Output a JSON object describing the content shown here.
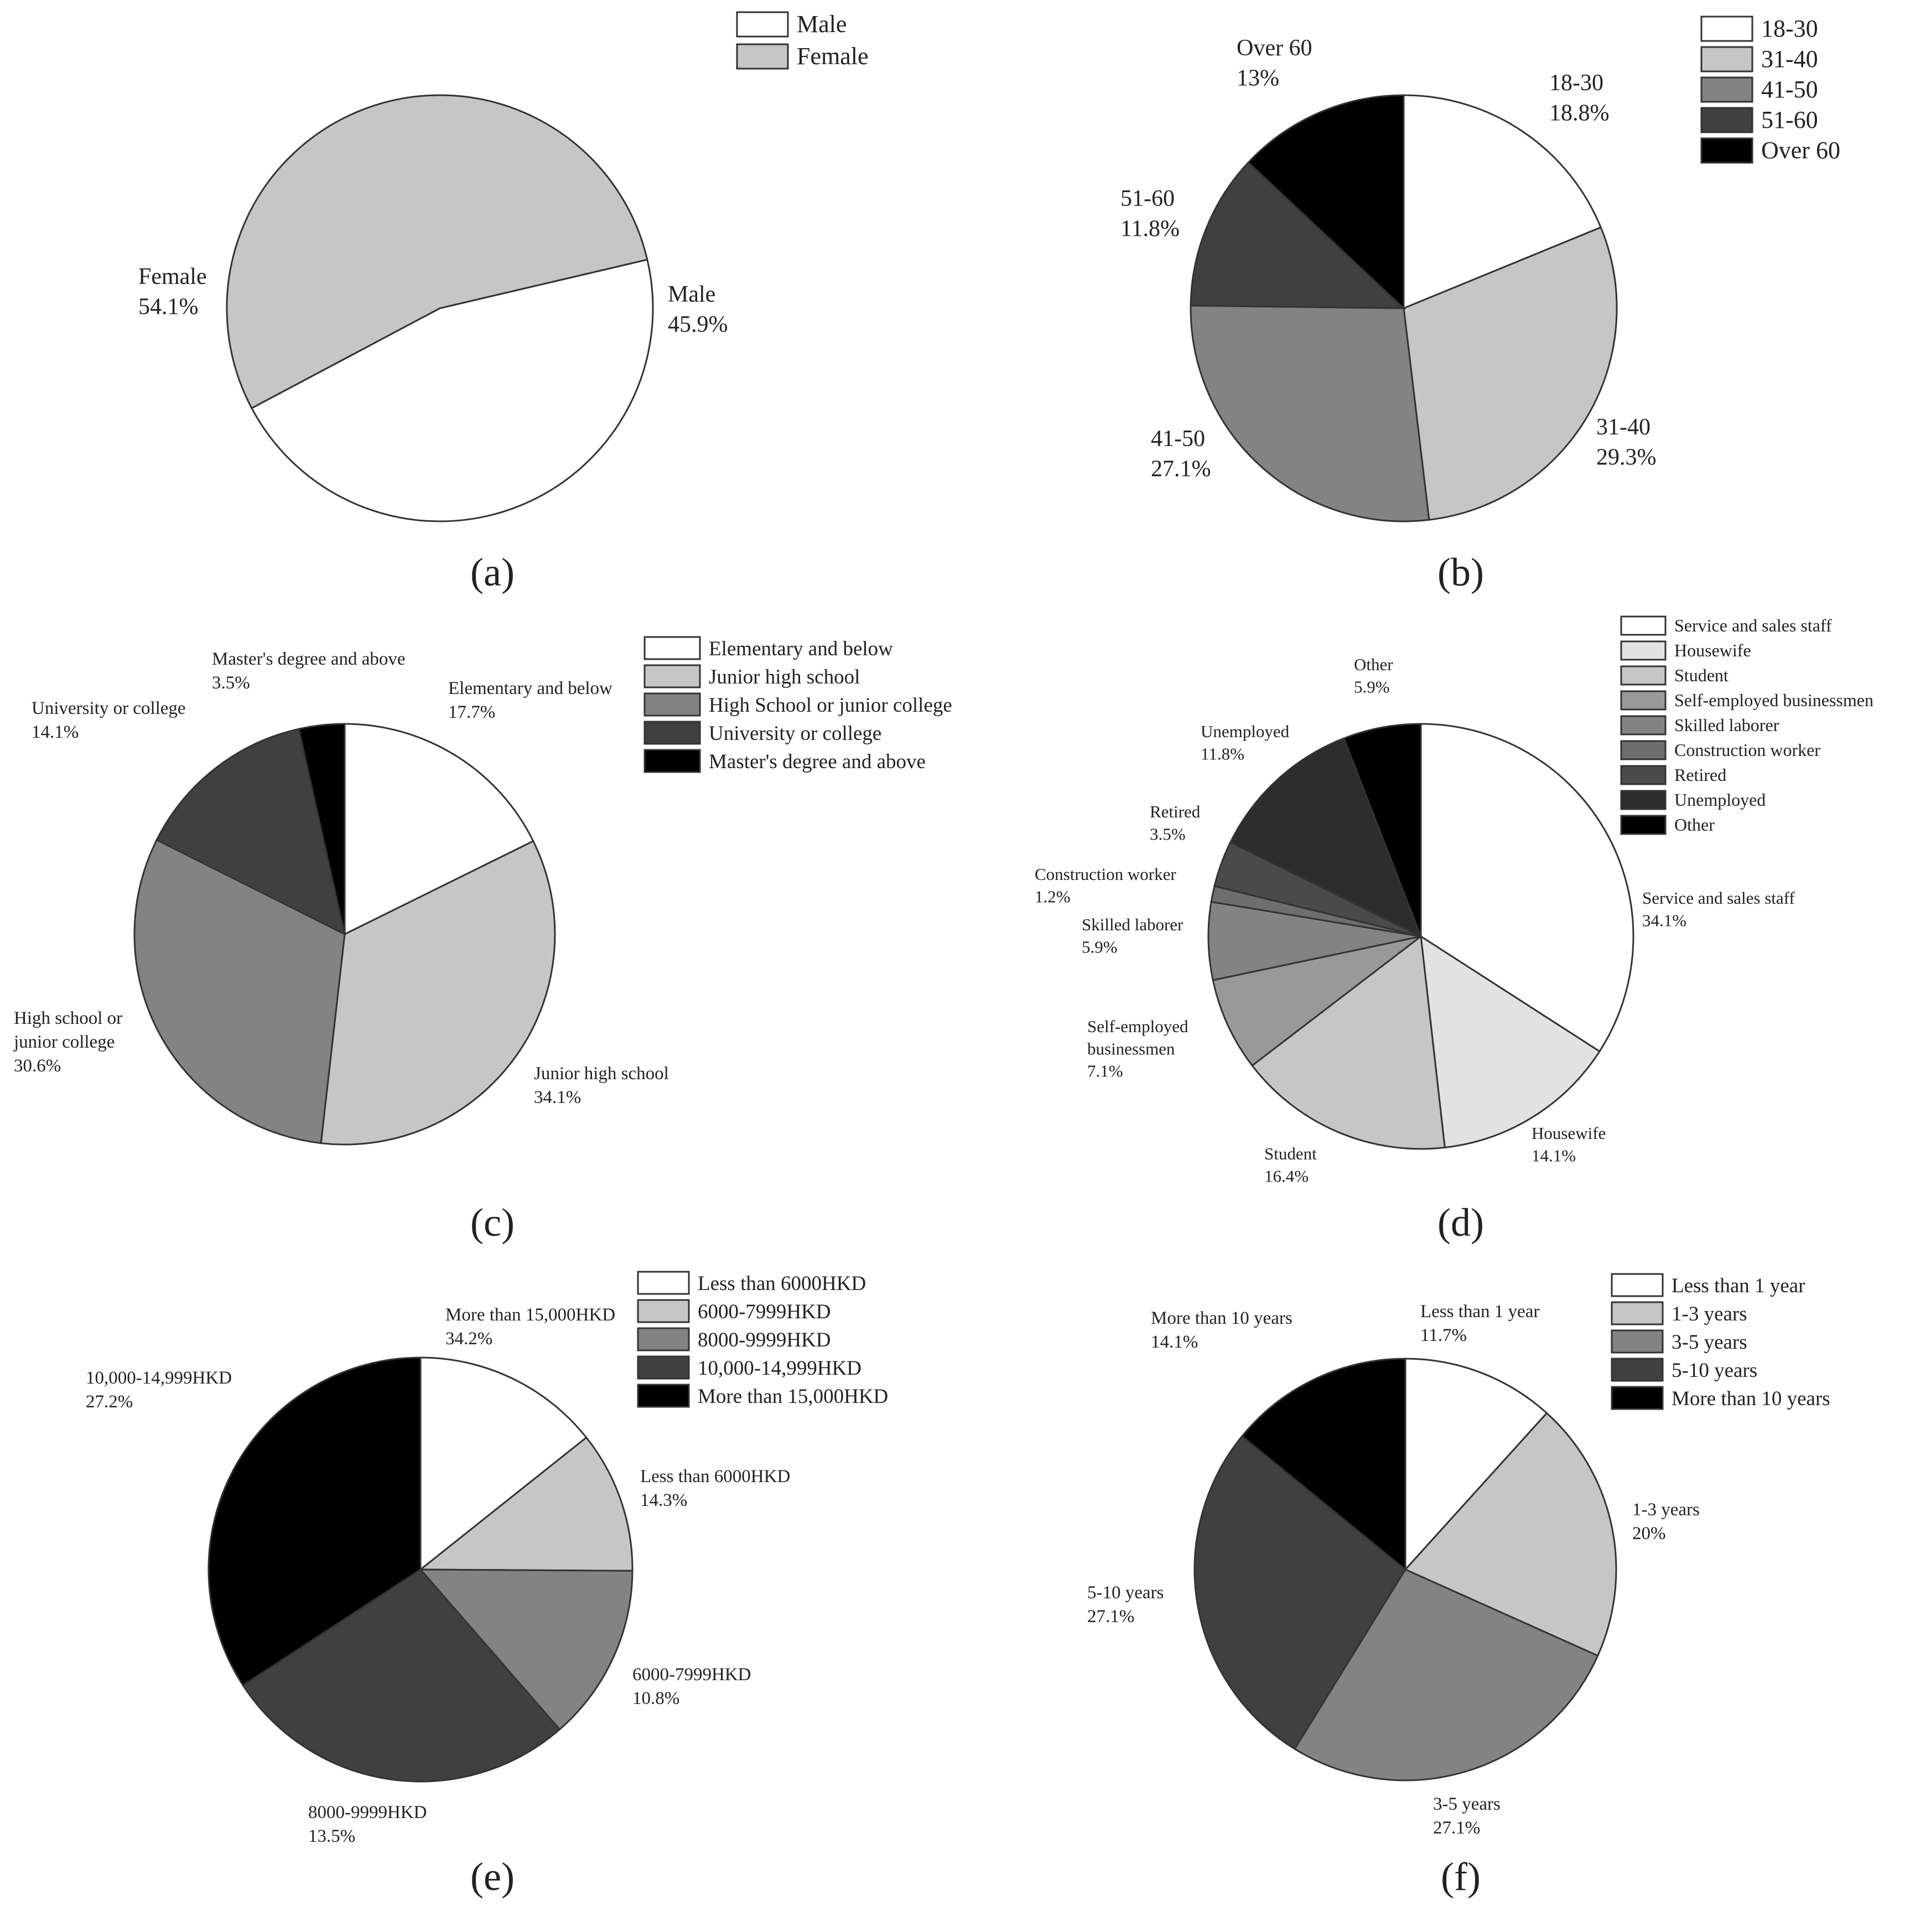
{
  "chart_data": [
    {
      "type": "pie",
      "panel_label": "(a)",
      "categories": [
        "Male",
        "Female"
      ],
      "values": [
        45.9,
        54.1
      ],
      "value_labels": [
        "45.9%",
        "54.1%"
      ],
      "colors": [
        "#ffffff",
        "#c6c6c6"
      ],
      "legend": [
        "Male",
        "Female"
      ],
      "legend_position": "top-right"
    },
    {
      "type": "pie",
      "panel_label": "(b)",
      "categories": [
        "18-30",
        "31-40",
        "41-50",
        "51-60",
        "Over 60"
      ],
      "values": [
        18.8,
        29.3,
        27.1,
        11.8,
        13
      ],
      "value_labels": [
        "18.8%",
        "29.3%",
        "27.1%",
        "11.8%",
        "13%"
      ],
      "colors": [
        "#ffffff",
        "#c6c6c6",
        "#838383",
        "#404040",
        "#000000"
      ],
      "legend": [
        "18-30",
        "31-40",
        "41-50",
        "51-60",
        "Over 60"
      ],
      "legend_position": "top-right"
    },
    {
      "type": "pie",
      "panel_label": "(c)",
      "categories": [
        "Elementary and below",
        "Junior high school",
        "High School or junior college",
        "University or college",
        "Master's degree and above"
      ],
      "slice_labels": [
        [
          "Elementary and below"
        ],
        [
          "Junior high school"
        ],
        [
          "High school or",
          "junior college"
        ],
        [
          "University or college"
        ],
        [
          "Master's degree and above"
        ]
      ],
      "values": [
        17.7,
        34.1,
        30.6,
        14.1,
        3.5
      ],
      "value_labels": [
        "17.7%",
        "34.1%",
        "30.6%",
        "14.1%",
        "3.5%"
      ],
      "colors": [
        "#ffffff",
        "#c6c6c6",
        "#838383",
        "#404040",
        "#000000"
      ],
      "legend": [
        "Elementary and below",
        "Junior high school",
        "High School or junior college",
        "University or college",
        "Master's degree and above"
      ],
      "legend_position": "top-right"
    },
    {
      "type": "pie",
      "panel_label": "(d)",
      "categories": [
        "Service and sales staff",
        "Housewife",
        "Student",
        "Self-employed businessmen",
        "Skilled laborer",
        "Construction worker",
        "Retired",
        "Unemployed",
        "Other"
      ],
      "slice_labels": [
        [
          "Service and sales staff"
        ],
        [
          "Housewife"
        ],
        [
          "Student"
        ],
        [
          "Self-employed",
          "businessmen"
        ],
        [
          "Skilled laborer"
        ],
        [
          "Construction worker"
        ],
        [
          "Retired"
        ],
        [
          "Unemployed"
        ],
        [
          "Other"
        ]
      ],
      "values": [
        34.1,
        14.1,
        16.4,
        7.1,
        5.9,
        1.2,
        3.5,
        11.8,
        5.9
      ],
      "value_labels": [
        "34.1%",
        "14.1%",
        "16.4%",
        "7.1%",
        "5.9%",
        "1.2%",
        "3.5%",
        "11.8%",
        "5.9%"
      ],
      "colors": [
        "#ffffff",
        "#e2e2e2",
        "#c6c6c6",
        "#999999",
        "#838383",
        "#6e6e6e",
        "#4a4a4a",
        "#2d2d2d",
        "#000000"
      ],
      "legend": [
        "Service and sales staff",
        "Housewife",
        "Student",
        "Self-employed businessmen",
        "Skilled laborer",
        "Construction worker",
        "Retired",
        "Unemployed",
        "Other"
      ],
      "legend_position": "top-right"
    },
    {
      "type": "pie",
      "panel_label": "(e)",
      "categories": [
        "Less than 6000HKD",
        "6000-7999HKD",
        "8000-9999HKD",
        "10,000-14,999HKD",
        "More than 15,000HKD"
      ],
      "values": [
        14.3,
        10.8,
        13.5,
        27.2,
        34.2
      ],
      "value_labels": [
        "14.3%",
        "10.8%",
        "13.5%",
        "27.2%",
        "34.2%"
      ],
      "colors": [
        "#ffffff",
        "#c6c6c6",
        "#838383",
        "#404040",
        "#000000"
      ],
      "legend": [
        "Less than 6000HKD",
        "6000-7999HKD",
        "8000-9999HKD",
        "10,000-14,999HKD",
        "More than 15,000HKD"
      ],
      "legend_position": "top-right"
    },
    {
      "type": "pie",
      "panel_label": "(f)",
      "categories": [
        "Less than 1 year",
        "1-3 years",
        "3-5 years",
        "5-10 years",
        "More than 10 years"
      ],
      "values": [
        11.7,
        20,
        27.1,
        27.1,
        14.1
      ],
      "value_labels": [
        "11.7%",
        "20%",
        "27.1%",
        "27.1%",
        "14.1%"
      ],
      "colors": [
        "#ffffff",
        "#c6c6c6",
        "#838383",
        "#404040",
        "#000000"
      ],
      "legend": [
        "Less than 1 year",
        "1-3 years",
        "3-5 years",
        "5-10 years",
        "More than 10 years"
      ],
      "legend_position": "top-right"
    }
  ]
}
